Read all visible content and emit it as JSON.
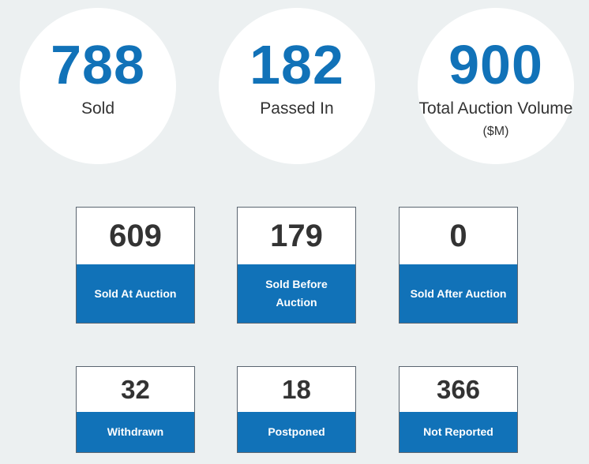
{
  "summary": [
    {
      "value": "788",
      "label": "Sold"
    },
    {
      "value": "182",
      "label": "Passed In"
    },
    {
      "value": "900",
      "label": "Total Auction Volume",
      "unit": "($M)"
    }
  ],
  "stats_row1": [
    {
      "value": "609",
      "label": "Sold At Auction"
    },
    {
      "value": "179",
      "label": "Sold Before Auction"
    },
    {
      "value": "0",
      "label": "Sold After Auction"
    }
  ],
  "stats_row2": [
    {
      "value": "32",
      "label": "Withdrawn"
    },
    {
      "value": "18",
      "label": "Postponed"
    },
    {
      "value": "366",
      "label": "Not Reported"
    }
  ],
  "colors": {
    "accent": "#1172b8",
    "background": "#ecf0f1",
    "text": "#333333"
  }
}
